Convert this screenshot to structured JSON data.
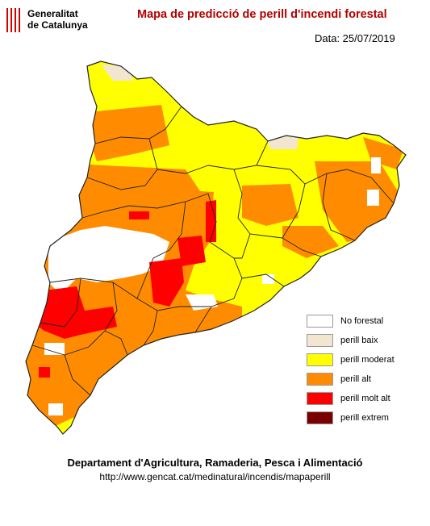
{
  "header": {
    "org_line1": "Generalitat",
    "org_line2": "de Catalunya",
    "title": "Mapa de predicció de perill d'incendi forestal",
    "date": "Data: 25/07/2019"
  },
  "legend": [
    {
      "label": "No forestal",
      "color": "#ffffff"
    },
    {
      "label": "perill baix",
      "color": "#f3e6d0"
    },
    {
      "label": "perill moderat",
      "color": "#ffff00"
    },
    {
      "label": "perill alt",
      "color": "#ff8c00"
    },
    {
      "label": "perill molt alt",
      "color": "#ff0000"
    },
    {
      "label": "perill extrem",
      "color": "#7a0000"
    }
  ],
  "footer": {
    "department": "Departament d'Agricultura, Ramaderia, Pesca i Alimentació",
    "url": "http://www.gencat.cat/medinatural/incendis/mapaperill"
  },
  "colors": {
    "title": "#b30000",
    "logo_red": "#d40000"
  }
}
